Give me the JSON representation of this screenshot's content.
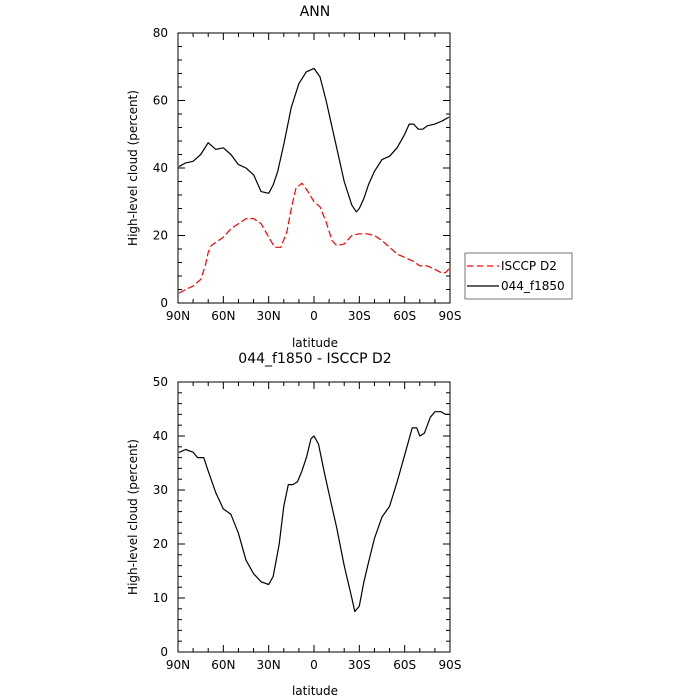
{
  "chart_data": [
    {
      "type": "line",
      "title": "ANN",
      "xlabel": "latitude",
      "ylabel": "High-level cloud (percent)",
      "xlim": [
        90,
        -90
      ],
      "ylim": [
        0,
        80
      ],
      "x_ticks": [
        90,
        60,
        30,
        0,
        -30,
        -60,
        -90
      ],
      "x_tick_labels": [
        "90N",
        "60N",
        "30N",
        "0",
        "30S",
        "60S",
        "90S"
      ],
      "y_ticks": [
        0,
        20,
        40,
        60,
        80
      ],
      "y_tick_labels": [
        "0",
        "20",
        "40",
        "60",
        "80"
      ],
      "grid": false,
      "legend": "outside-right",
      "series": [
        {
          "name": "ISCCP D2",
          "color": "#ff0000",
          "dash": "dashed",
          "x": [
            89,
            85,
            80,
            75,
            72,
            70,
            68,
            65,
            60,
            55,
            50,
            45,
            40,
            35,
            30,
            26,
            22,
            18,
            15,
            12,
            8,
            4,
            0,
            -4,
            -8,
            -12,
            -15,
            -20,
            -25,
            -30,
            -35,
            -40,
            -45,
            -50,
            -55,
            -60,
            -65,
            -70,
            -75,
            -80,
            -84,
            -87,
            -89
          ],
          "y": [
            3,
            4,
            5,
            7,
            11,
            15,
            17,
            18,
            19.5,
            22,
            23.5,
            25,
            25,
            23.5,
            19.5,
            16.5,
            16.5,
            21,
            28,
            34,
            35.5,
            33,
            30,
            28.5,
            24,
            18.5,
            17,
            17.5,
            20,
            20.5,
            20.5,
            20,
            18.5,
            16.5,
            14.5,
            13.5,
            12.5,
            11,
            11,
            10,
            9,
            9,
            10
          ]
        },
        {
          "name": "044_f1850",
          "color": "#000000",
          "dash": "solid",
          "x": [
            89,
            85,
            80,
            75,
            70,
            65,
            60,
            55,
            50,
            45,
            40,
            35,
            30,
            27,
            24,
            20,
            15,
            10,
            5,
            0,
            -4,
            -8,
            -12,
            -16,
            -20,
            -25,
            -28,
            -30,
            -33,
            -36,
            -40,
            -45,
            -50,
            -55,
            -60,
            -63,
            -66,
            -69,
            -72,
            -75,
            -80,
            -85,
            -89
          ],
          "y": [
            40.5,
            41.5,
            42,
            44,
            47.5,
            45.5,
            46,
            44,
            41,
            40,
            38,
            33,
            32.5,
            35,
            39,
            47,
            58,
            65,
            68.5,
            69.5,
            67,
            60,
            52,
            44,
            36,
            29,
            27,
            28,
            31,
            35,
            39,
            42.5,
            43.5,
            46,
            50,
            53,
            53,
            51.5,
            51.5,
            52.5,
            53,
            54,
            55
          ]
        }
      ]
    },
    {
      "type": "line",
      "title": "044_f1850 - ISCCP D2",
      "xlabel": "latitude",
      "ylabel": "High-level cloud (percent)",
      "xlim": [
        90,
        -90
      ],
      "ylim": [
        0,
        50
      ],
      "x_ticks": [
        90,
        60,
        30,
        0,
        -30,
        -60,
        -90
      ],
      "x_tick_labels": [
        "90N",
        "60N",
        "30N",
        "0",
        "30S",
        "60S",
        "90S"
      ],
      "y_ticks": [
        0,
        10,
        20,
        30,
        40,
        50
      ],
      "y_tick_labels": [
        "0",
        "10",
        "20",
        "30",
        "40",
        "50"
      ],
      "grid": false,
      "series": [
        {
          "color": "#000000",
          "dash": "solid",
          "x": [
            89,
            85,
            80,
            77,
            73,
            70,
            65,
            60,
            55,
            50,
            45,
            40,
            35,
            30,
            27,
            23,
            20,
            17,
            14,
            11,
            8,
            5,
            2,
            0,
            -3,
            -7,
            -11,
            -15,
            -20,
            -25,
            -27,
            -30,
            -33,
            -36,
            -40,
            -45,
            -50,
            -55,
            -60,
            -65,
            -68,
            -70,
            -73,
            -77,
            -80,
            -84,
            -87,
            -89
          ],
          "y": [
            37,
            37.5,
            37,
            36,
            36,
            33.5,
            29.5,
            26.5,
            25.5,
            22,
            17,
            14.5,
            13,
            12.5,
            14,
            20,
            27,
            31,
            31,
            31.5,
            33.5,
            36,
            39.5,
            40,
            38.5,
            33,
            28,
            23,
            16,
            10,
            7.5,
            8.5,
            13,
            16.5,
            21,
            25,
            27,
            31.5,
            36.5,
            41.5,
            41.5,
            40,
            40.5,
            43.5,
            44.5,
            44.5,
            44,
            44
          ]
        }
      ]
    }
  ]
}
